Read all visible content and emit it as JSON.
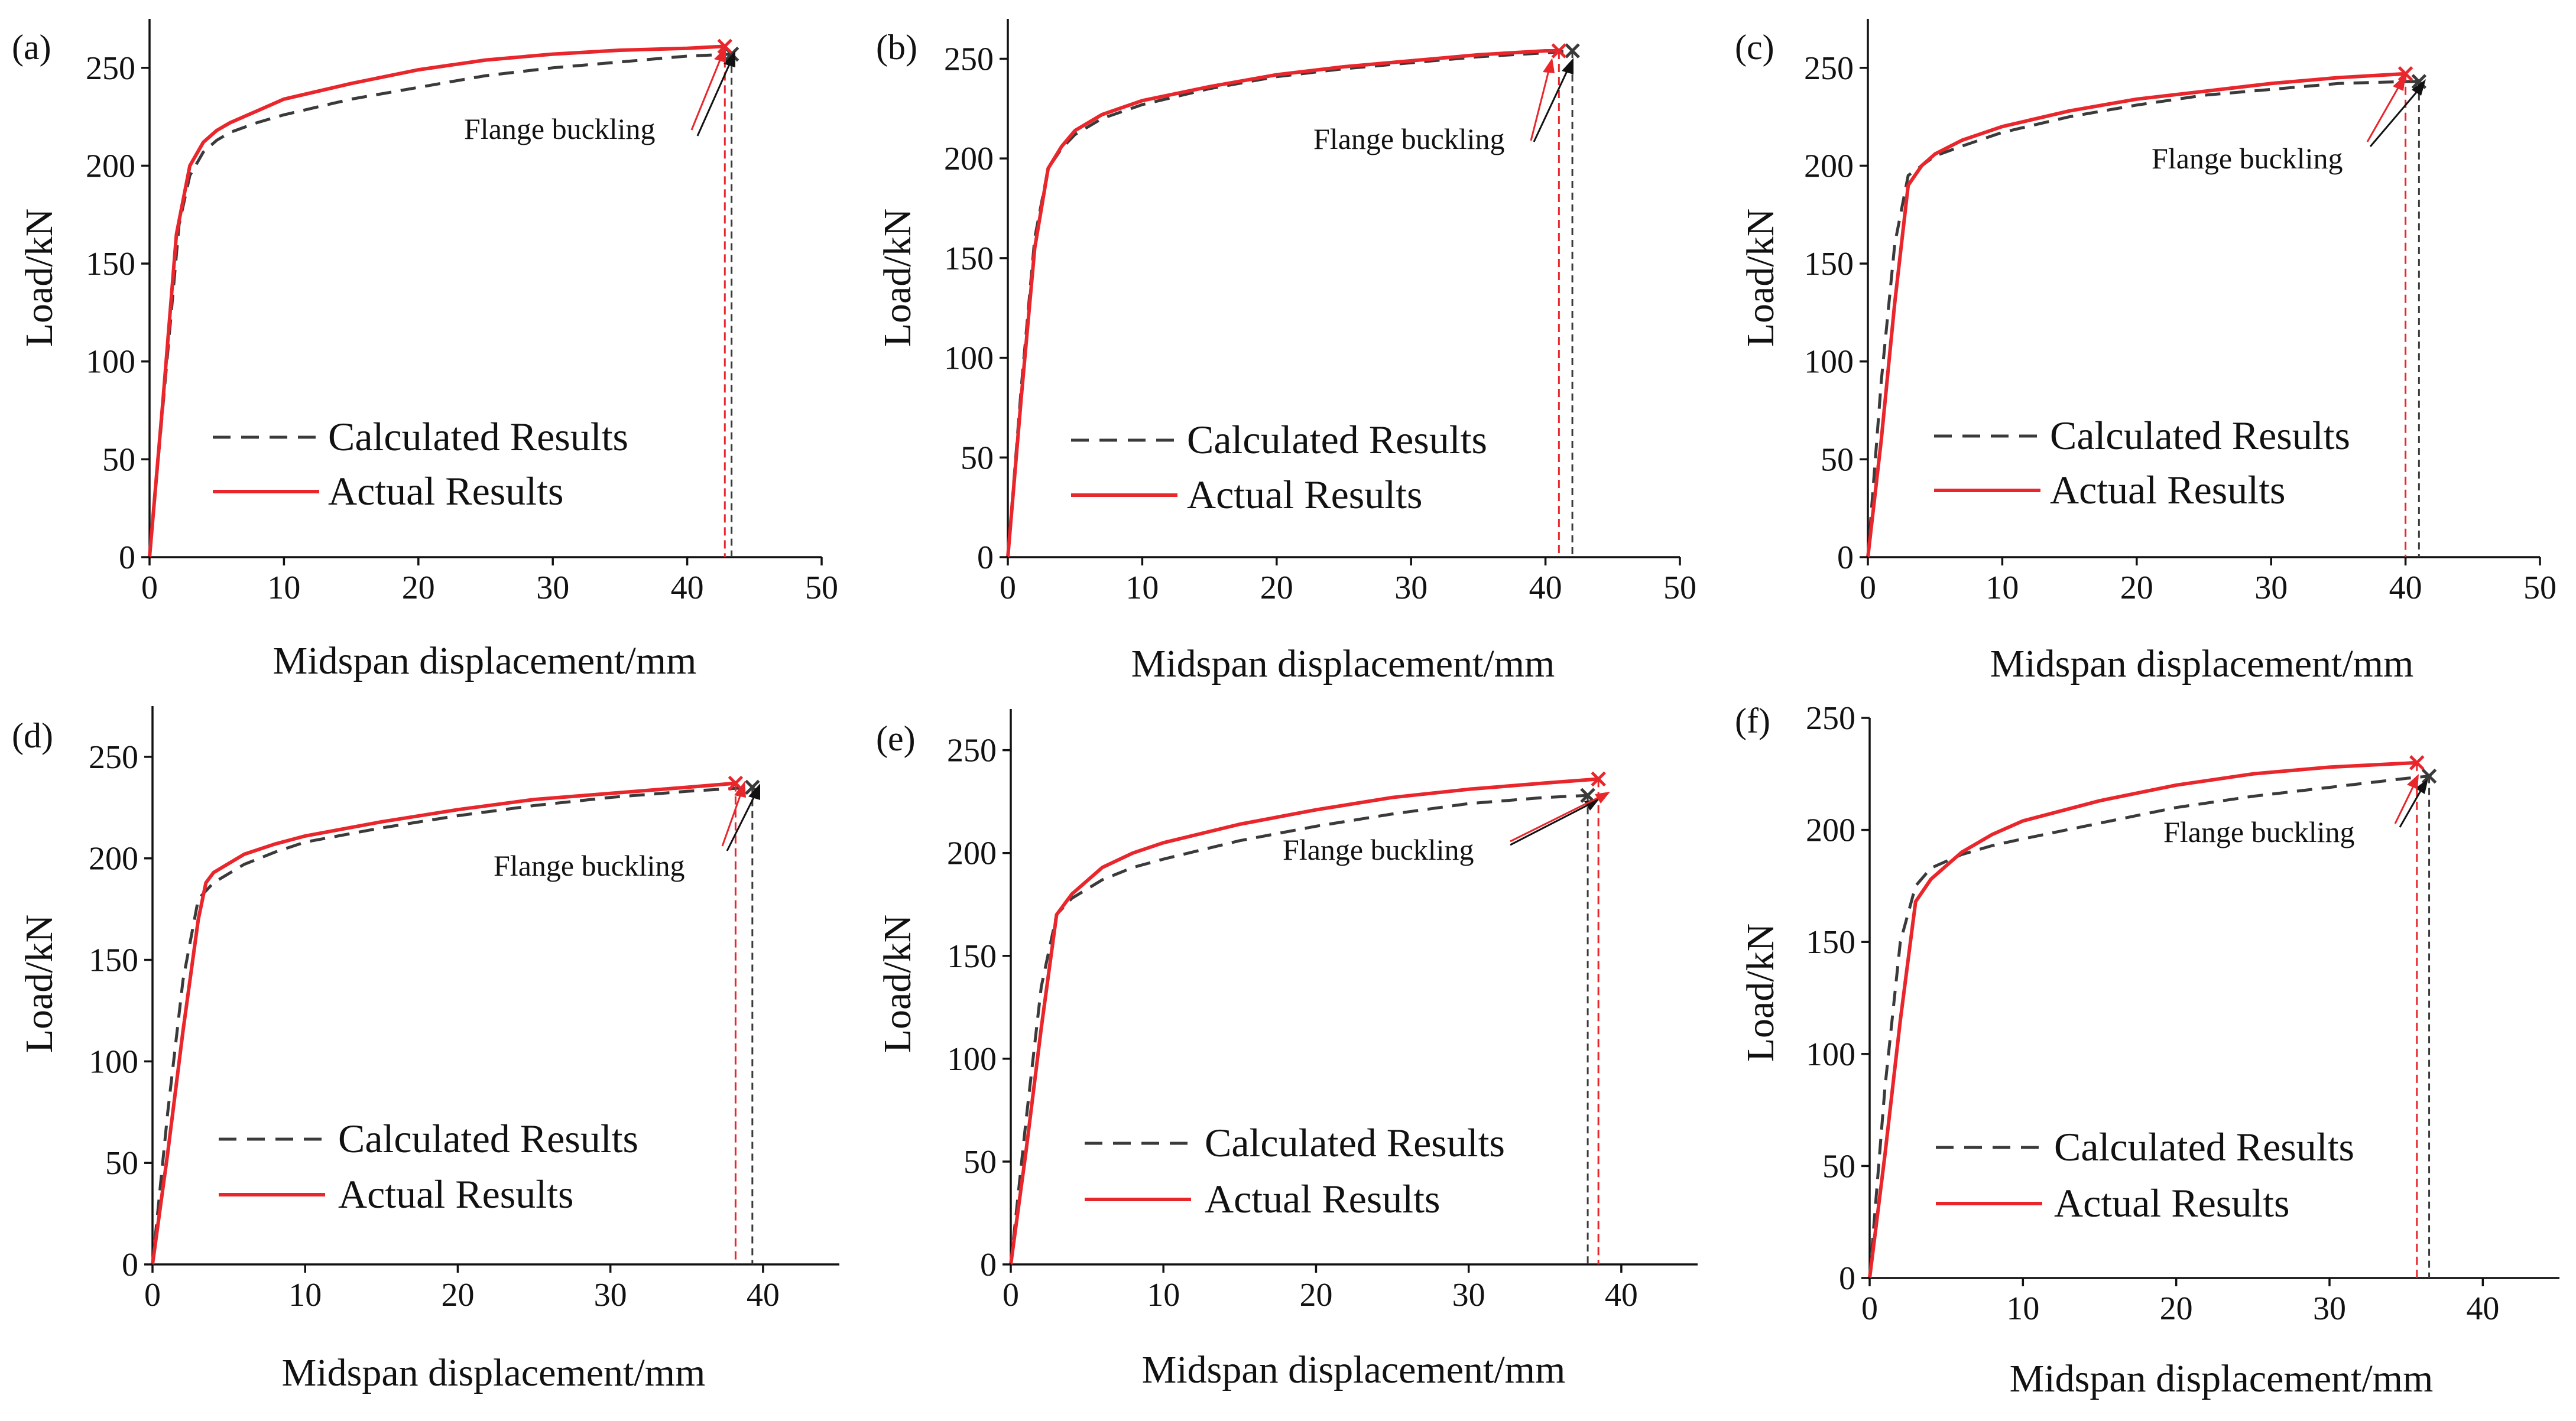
{
  "figure": {
    "legend": {
      "calculated_label": "Calculated Results",
      "actual_label": "Actual Results"
    },
    "colors": {
      "calculated": "#3a3a3a",
      "actual": "#e8262b",
      "axis": "#111111"
    }
  },
  "chart_data": [
    {
      "type": "line",
      "panel_label": "(a)",
      "xlabel": "Midspan displacement/mm",
      "ylabel": "Load/kN",
      "xlim": [
        0,
        50
      ],
      "ylim": [
        0,
        275
      ],
      "xticks": [
        0,
        10,
        20,
        30,
        40,
        50
      ],
      "yticks": [
        0,
        50,
        100,
        150,
        200,
        250
      ],
      "annotation": "Flange buckling",
      "series": [
        {
          "name": "Calculated Results",
          "style": "dashed",
          "x": [
            0,
            2.2,
            3,
            4,
            5,
            6,
            8,
            10,
            15,
            20,
            25,
            30,
            35,
            40,
            43.3
          ],
          "y": [
            0,
            170,
            195,
            207,
            213,
            217,
            222,
            226,
            234,
            240,
            246,
            250,
            253,
            256,
            257
          ],
          "buckling_x": 43.3
        },
        {
          "name": "Actual Results",
          "style": "solid",
          "x": [
            0,
            1,
            2,
            3,
            4,
            5,
            6,
            8,
            10,
            15,
            20,
            25,
            30,
            35,
            40,
            42.8
          ],
          "y": [
            0,
            80,
            165,
            200,
            212,
            218,
            222,
            228,
            234,
            242,
            249,
            254,
            257,
            259,
            260,
            261
          ],
          "buckling_x": 42.8
        }
      ]
    },
    {
      "type": "line",
      "panel_label": "(b)",
      "xlabel": "Midspan displacement/mm",
      "ylabel": "Load/kN",
      "xlim": [
        0,
        50
      ],
      "ylim": [
        0,
        270
      ],
      "xticks": [
        0,
        10,
        20,
        30,
        40,
        50
      ],
      "yticks": [
        0,
        50,
        100,
        150,
        200,
        250
      ],
      "annotation": "Flange buckling",
      "series": [
        {
          "name": "Calculated Results",
          "style": "dashed",
          "x": [
            0,
            1,
            2,
            3,
            4,
            5,
            7,
            10,
            15,
            20,
            25,
            30,
            35,
            40,
            42
          ],
          "y": [
            0,
            85,
            160,
            195,
            205,
            212,
            220,
            227,
            235,
            241,
            245,
            248,
            251,
            253,
            254
          ],
          "buckling_x": 42
        },
        {
          "name": "Actual Results",
          "style": "solid",
          "x": [
            0,
            1,
            2,
            3,
            4,
            5,
            7,
            10,
            15,
            20,
            25,
            30,
            35,
            40,
            41
          ],
          "y": [
            0,
            80,
            155,
            195,
            206,
            214,
            222,
            229,
            236,
            242,
            246,
            249,
            252,
            254,
            254
          ],
          "buckling_x": 41
        }
      ]
    },
    {
      "type": "line",
      "panel_label": "(c)",
      "xlabel": "Midspan displacement/mm",
      "ylabel": "Load/kN",
      "xlim": [
        0,
        50
      ],
      "ylim": [
        0,
        275
      ],
      "xticks": [
        0,
        10,
        20,
        30,
        40,
        50
      ],
      "yticks": [
        0,
        50,
        100,
        150,
        200,
        250
      ],
      "annotation": "Flange buckling",
      "series": [
        {
          "name": "Calculated Results",
          "style": "dashed",
          "x": [
            0,
            1,
            2,
            3,
            4,
            5,
            7,
            10,
            15,
            20,
            25,
            30,
            35,
            40,
            41
          ],
          "y": [
            0,
            90,
            160,
            195,
            200,
            205,
            210,
            217,
            225,
            231,
            236,
            239,
            242,
            243,
            243
          ],
          "buckling_x": 41
        },
        {
          "name": "Actual Results",
          "style": "solid",
          "x": [
            0,
            1,
            2,
            3,
            4,
            5,
            7,
            10,
            15,
            20,
            25,
            30,
            35,
            40
          ],
          "y": [
            0,
            60,
            130,
            190,
            200,
            206,
            213,
            220,
            228,
            234,
            238,
            242,
            245,
            247
          ],
          "buckling_x": 40
        }
      ]
    },
    {
      "type": "line",
      "panel_label": "(d)",
      "xlabel": "Midspan displacement/mm",
      "ylabel": "Load/kN",
      "xlim": [
        0,
        45
      ],
      "ylim": [
        0,
        275
      ],
      "xticks": [
        0,
        10,
        20,
        30,
        40
      ],
      "yticks": [
        0,
        50,
        100,
        150,
        200,
        250
      ],
      "annotation": "Flange buckling",
      "series": [
        {
          "name": "Calculated Results",
          "style": "dashed",
          "x": [
            0,
            1,
            2,
            3,
            4,
            6,
            8,
            10,
            15,
            20,
            25,
            30,
            35,
            39.3
          ],
          "y": [
            0,
            75,
            140,
            180,
            188,
            197,
            203,
            208,
            215,
            221,
            226,
            230,
            233,
            235
          ],
          "buckling_x": 39.3
        },
        {
          "name": "Actual Results",
          "style": "solid",
          "x": [
            0,
            1,
            2,
            3,
            3.5,
            4,
            6,
            8,
            10,
            15,
            20,
            25,
            30,
            35,
            38.2
          ],
          "y": [
            0,
            55,
            115,
            170,
            188,
            193,
            202,
            207,
            211,
            218,
            224,
            229,
            232,
            235,
            237
          ],
          "buckling_x": 38.2
        }
      ]
    },
    {
      "type": "line",
      "panel_label": "(e)",
      "xlabel": "Midspan displacement/mm",
      "ylabel": "Load/kN",
      "xlim": [
        0,
        45
      ],
      "ylim": [
        0,
        270
      ],
      "xticks": [
        0,
        10,
        20,
        30,
        40
      ],
      "yticks": [
        0,
        50,
        100,
        150,
        200,
        250
      ],
      "annotation": "Flange buckling",
      "series": [
        {
          "name": "Calculated Results",
          "style": "dashed",
          "x": [
            0,
            1,
            2,
            3,
            4,
            6,
            8,
            10,
            15,
            20,
            25,
            30,
            35,
            37.8
          ],
          "y": [
            0,
            70,
            135,
            170,
            178,
            187,
            193,
            197,
            206,
            213,
            219,
            224,
            227,
            228
          ],
          "buckling_x": 37.8
        },
        {
          "name": "Actual Results",
          "style": "solid",
          "x": [
            0,
            1,
            2,
            3,
            4,
            6,
            8,
            10,
            15,
            20,
            25,
            30,
            35,
            38.5
          ],
          "y": [
            0,
            55,
            115,
            170,
            180,
            193,
            200,
            205,
            214,
            221,
            227,
            231,
            234,
            236
          ],
          "buckling_x": 38.5
        }
      ]
    },
    {
      "type": "line",
      "panel_label": "(f)",
      "xlabel": "Midspan displacement/mm",
      "ylabel": "Load/kN",
      "xlim": [
        0,
        45
      ],
      "ylim": [
        0,
        250
      ],
      "xticks": [
        0,
        10,
        20,
        30,
        40
      ],
      "yticks": [
        0,
        50,
        100,
        150,
        200,
        250
      ],
      "annotation": "Flange buckling",
      "series": [
        {
          "name": "Calculated Results",
          "style": "dashed",
          "x": [
            0,
            1,
            2,
            3,
            4,
            6,
            8,
            10,
            15,
            20,
            25,
            30,
            35,
            36.5
          ],
          "y": [
            0,
            85,
            150,
            175,
            183,
            189,
            193,
            196,
            203,
            210,
            215,
            219,
            223,
            224
          ],
          "buckling_x": 36.5
        },
        {
          "name": "Actual Results",
          "style": "solid",
          "x": [
            0,
            1,
            2,
            3,
            4,
            6,
            8,
            10,
            15,
            20,
            25,
            30,
            35.7
          ],
          "y": [
            0,
            55,
            115,
            168,
            178,
            190,
            198,
            204,
            213,
            220,
            225,
            228,
            230
          ],
          "buckling_x": 35.7
        }
      ]
    }
  ]
}
